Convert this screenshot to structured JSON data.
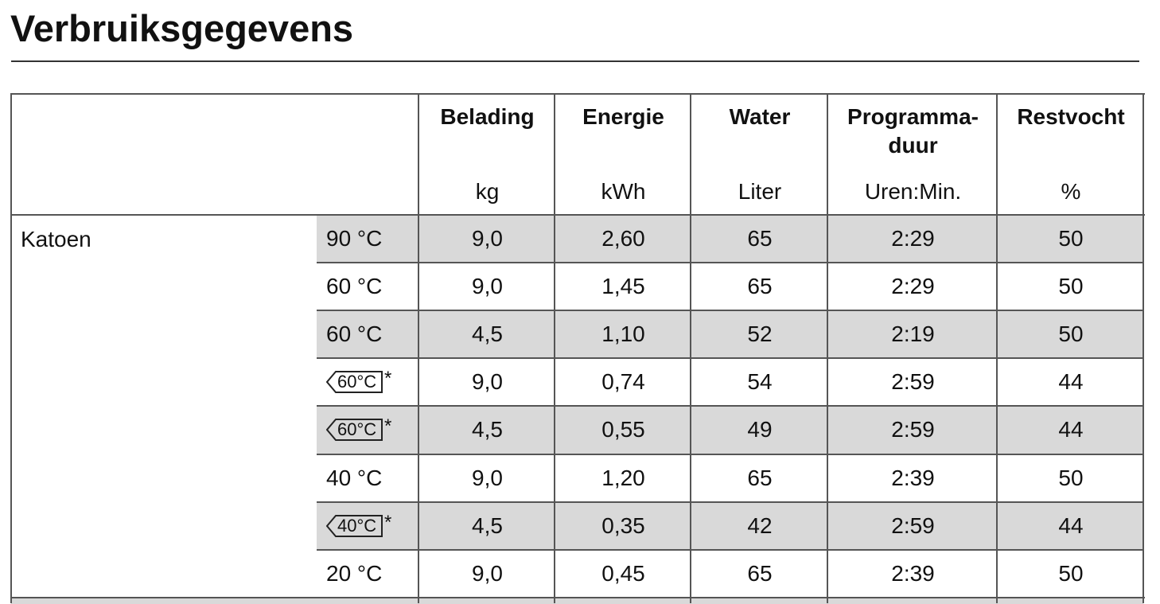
{
  "title": "Verbruiksgegevens",
  "table": {
    "columns": [
      {
        "header": [
          "Belading"
        ],
        "unit": "kg"
      },
      {
        "header": [
          "Energie"
        ],
        "unit": "kWh"
      },
      {
        "header": [
          "Water"
        ],
        "unit": "Liter"
      },
      {
        "header": [
          "Programma-",
          "duur"
        ],
        "unit": "Uren:Min."
      },
      {
        "header": [
          "Restvocht"
        ],
        "unit": "%"
      }
    ],
    "groups": [
      {
        "label": "Katoen",
        "rows": [
          {
            "program": {
              "text": "90 °C"
            },
            "values": [
              "9,0",
              "2,60",
              "65",
              "2:29",
              "50"
            ]
          },
          {
            "program": {
              "text": "60 °C"
            },
            "values": [
              "9,0",
              "1,45",
              "65",
              "2:29",
              "50"
            ]
          },
          {
            "program": {
              "text": "60 °C"
            },
            "values": [
              "4,5",
              "1,10",
              "52",
              "2:19",
              "50"
            ]
          },
          {
            "program": {
              "icon_text": "60°C",
              "note": "*"
            },
            "values": [
              "9,0",
              "0,74",
              "54",
              "2:59",
              "44"
            ]
          },
          {
            "program": {
              "icon_text": "60°C",
              "note": "*"
            },
            "values": [
              "4,5",
              "0,55",
              "49",
              "2:59",
              "44"
            ]
          },
          {
            "program": {
              "text": "40 °C"
            },
            "values": [
              "9,0",
              "1,20",
              "65",
              "2:39",
              "50"
            ]
          },
          {
            "program": {
              "icon_text": "40°C",
              "note": "*"
            },
            "values": [
              "4,5",
              "0,35",
              "42",
              "2:59",
              "44"
            ]
          },
          {
            "program": {
              "text": "20 °C"
            },
            "values": [
              "9,0",
              "0,45",
              "65",
              "2:39",
              "50"
            ]
          }
        ]
      }
    ]
  }
}
